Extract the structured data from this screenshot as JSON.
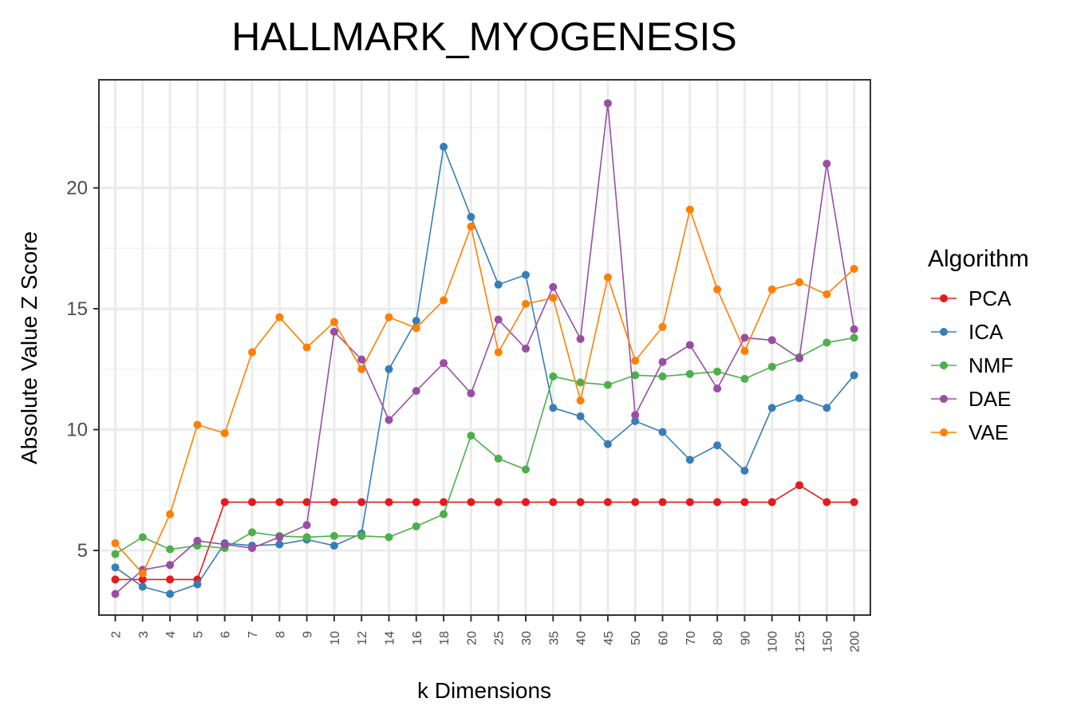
{
  "chart_data": {
    "type": "line",
    "title": "HALLMARK_MYOGENESIS",
    "xlabel": "k Dimensions",
    "ylabel": "Absolute Value Z Score",
    "categories": [
      "2",
      "3",
      "4",
      "5",
      "6",
      "7",
      "8",
      "9",
      "10",
      "12",
      "14",
      "16",
      "18",
      "20",
      "25",
      "30",
      "35",
      "40",
      "45",
      "50",
      "60",
      "70",
      "80",
      "90",
      "100",
      "125",
      "150",
      "200"
    ],
    "yticks": [
      5,
      10,
      15,
      20
    ],
    "ylim": [
      2.4,
      24.5
    ],
    "grid": true,
    "legend": {
      "title": "Algorithm",
      "position": "right"
    },
    "series": [
      {
        "name": "PCA",
        "color": "#e41a1c",
        "values": [
          3.8,
          3.8,
          3.8,
          3.8,
          7.0,
          7.0,
          7.0,
          7.0,
          7.0,
          7.0,
          7.0,
          7.0,
          7.0,
          7.0,
          7.0,
          7.0,
          7.0,
          7.0,
          7.0,
          7.0,
          7.0,
          7.0,
          7.0,
          7.0,
          7.0,
          7.7,
          7.0,
          7.0
        ]
      },
      {
        "name": "ICA",
        "color": "#377eb8",
        "values": [
          4.3,
          3.5,
          3.2,
          3.6,
          5.3,
          5.2,
          5.25,
          5.45,
          5.2,
          5.7,
          12.5,
          14.5,
          21.7,
          18.8,
          16.0,
          16.4,
          10.9,
          10.55,
          9.4,
          10.35,
          9.9,
          8.75,
          9.35,
          8.3,
          10.9,
          11.3,
          10.9,
          12.25
        ]
      },
      {
        "name": "NMF",
        "color": "#4daf4a",
        "values": [
          4.85,
          5.55,
          5.05,
          5.2,
          5.1,
          5.75,
          5.6,
          5.55,
          5.6,
          5.6,
          5.55,
          6.0,
          6.5,
          9.75,
          8.8,
          8.35,
          12.2,
          11.95,
          11.85,
          12.25,
          12.2,
          12.3,
          12.4,
          12.1,
          12.6,
          13.0,
          13.6,
          13.8
        ]
      },
      {
        "name": "DAE",
        "color": "#984ea3",
        "values": [
          3.2,
          4.2,
          4.4,
          5.4,
          5.25,
          5.1,
          5.55,
          6.05,
          14.05,
          12.9,
          10.4,
          11.6,
          12.75,
          11.5,
          14.55,
          13.35,
          15.9,
          13.75,
          23.5,
          10.6,
          12.8,
          13.5,
          11.7,
          13.8,
          13.7,
          12.95,
          21.0,
          14.15
        ]
      },
      {
        "name": "VAE",
        "color": "#ff7f00",
        "values": [
          5.3,
          4.05,
          6.5,
          10.2,
          9.85,
          13.2,
          14.65,
          13.4,
          14.45,
          12.5,
          14.65,
          14.2,
          15.35,
          18.4,
          13.2,
          15.2,
          15.45,
          11.2,
          16.3,
          12.85,
          14.25,
          19.1,
          15.8,
          13.25,
          15.8,
          16.1,
          15.6,
          16.65
        ]
      }
    ]
  }
}
